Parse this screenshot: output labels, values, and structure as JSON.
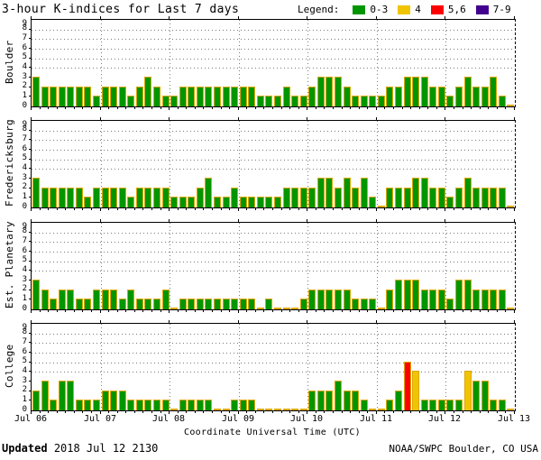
{
  "header": {
    "title": "3-hour K-indices for Last 7 days",
    "legend_label": "Legend:",
    "legend": [
      {
        "label": "0-3",
        "color": "#009600"
      },
      {
        "label": "4",
        "color": "#f0c400"
      },
      {
        "label": "5,6",
        "color": "#ff0000"
      },
      {
        "label": "7-9",
        "color": "#42008f"
      }
    ]
  },
  "footer": {
    "updated_label": "Updated",
    "updated_value": "2018 Jul 12 2130",
    "credit": "NOAA/SWPC Boulder, CO USA"
  },
  "chart_data": {
    "type": "bar",
    "title": "3-hour K-indices for Last 7 days",
    "xlabel": "Coordinate Universal Time (UTC)",
    "x_tick_labels": [
      "Jul 06",
      "Jul 07",
      "Jul 08",
      "Jul 09",
      "Jul 10",
      "Jul 11",
      "Jul 12",
      "Jul 13"
    ],
    "ylim": [
      0,
      9
    ],
    "y_ticks": [
      0,
      1,
      2,
      3,
      4,
      5,
      6,
      7,
      8,
      9
    ],
    "hours_per_bar": 3,
    "bars_per_day": 8,
    "grid": {
      "h_lines": [
        4,
        5,
        6,
        7,
        8
      ],
      "v_lines": "day-boundaries",
      "style": "dotted"
    },
    "color_map": {
      "0-3": "#009600",
      "4": "#f0c400",
      "5-6": "#ff0000",
      "7-9": "#42008f"
    },
    "bar_outline": "#dca600",
    "panels": [
      {
        "station": "Boulder",
        "days": [
          {
            "date": "Jul 06",
            "values": [
              3,
              2,
              2,
              2,
              2,
              2,
              2,
              1
            ]
          },
          {
            "date": "Jul 07",
            "values": [
              2,
              2,
              2,
              1,
              2,
              3,
              2,
              1
            ]
          },
          {
            "date": "Jul 08",
            "values": [
              1,
              2,
              2,
              2,
              2,
              2,
              2,
              2
            ]
          },
          {
            "date": "Jul 09",
            "values": [
              2,
              2,
              1,
              1,
              1,
              2,
              1,
              1
            ]
          },
          {
            "date": "Jul 10",
            "values": [
              2,
              3,
              3,
              3,
              2,
              1,
              1,
              1
            ]
          },
          {
            "date": "Jul 11",
            "values": [
              1,
              2,
              2,
              3,
              3,
              3,
              2,
              2
            ]
          },
          {
            "date": "Jul 12",
            "values": [
              1,
              2,
              3,
              2,
              2,
              3,
              1,
              0
            ]
          }
        ]
      },
      {
        "station": "Fredericksburg",
        "days": [
          {
            "date": "Jul 06",
            "values": [
              3,
              2,
              2,
              2,
              2,
              2,
              1,
              2
            ]
          },
          {
            "date": "Jul 07",
            "values": [
              2,
              2,
              2,
              1,
              2,
              2,
              2,
              2
            ]
          },
          {
            "date": "Jul 08",
            "values": [
              1,
              1,
              1,
              2,
              3,
              1,
              1,
              2
            ]
          },
          {
            "date": "Jul 09",
            "values": [
              1,
              1,
              1,
              1,
              1,
              2,
              2,
              2
            ]
          },
          {
            "date": "Jul 10",
            "values": [
              2,
              3,
              3,
              2,
              3,
              2,
              3,
              1
            ]
          },
          {
            "date": "Jul 11",
            "values": [
              0,
              2,
              2,
              2,
              3,
              3,
              2,
              2
            ]
          },
          {
            "date": "Jul 12",
            "values": [
              1,
              2,
              3,
              2,
              2,
              2,
              2,
              0
            ]
          }
        ]
      },
      {
        "station": "Est. Planetary",
        "days": [
          {
            "date": "Jul 06",
            "values": [
              3,
              2,
              1,
              2,
              2,
              1,
              1,
              2
            ]
          },
          {
            "date": "Jul 07",
            "values": [
              2,
              2,
              1,
              2,
              1,
              1,
              1,
              2
            ]
          },
          {
            "date": "Jul 08",
            "values": [
              0,
              1,
              1,
              1,
              1,
              1,
              1,
              1
            ]
          },
          {
            "date": "Jul 09",
            "values": [
              1,
              1,
              0,
              1,
              0,
              0,
              0,
              1
            ]
          },
          {
            "date": "Jul 10",
            "values": [
              2,
              2,
              2,
              2,
              2,
              1,
              1,
              1
            ]
          },
          {
            "date": "Jul 11",
            "values": [
              0,
              2,
              3,
              3,
              3,
              2,
              2,
              2
            ]
          },
          {
            "date": "Jul 12",
            "values": [
              1,
              3,
              3,
              2,
              2,
              2,
              2,
              0
            ]
          }
        ]
      },
      {
        "station": "College",
        "days": [
          {
            "date": "Jul 06",
            "values": [
              2,
              3,
              1,
              3,
              3,
              1,
              1,
              1
            ]
          },
          {
            "date": "Jul 07",
            "values": [
              2,
              2,
              2,
              1,
              1,
              1,
              1,
              1
            ]
          },
          {
            "date": "Jul 08",
            "values": [
              0,
              1,
              1,
              1,
              1,
              0,
              0,
              1
            ]
          },
          {
            "date": "Jul 09",
            "values": [
              1,
              1,
              0,
              0,
              0,
              0,
              0,
              0
            ]
          },
          {
            "date": "Jul 10",
            "values": [
              2,
              2,
              2,
              3,
              2,
              2,
              1,
              0
            ]
          },
          {
            "date": "Jul 11",
            "values": [
              0,
              1,
              2,
              5,
              4,
              1,
              1,
              1
            ]
          },
          {
            "date": "Jul 12",
            "values": [
              1,
              1,
              4,
              3,
              3,
              1,
              1,
              0
            ]
          }
        ]
      }
    ]
  }
}
